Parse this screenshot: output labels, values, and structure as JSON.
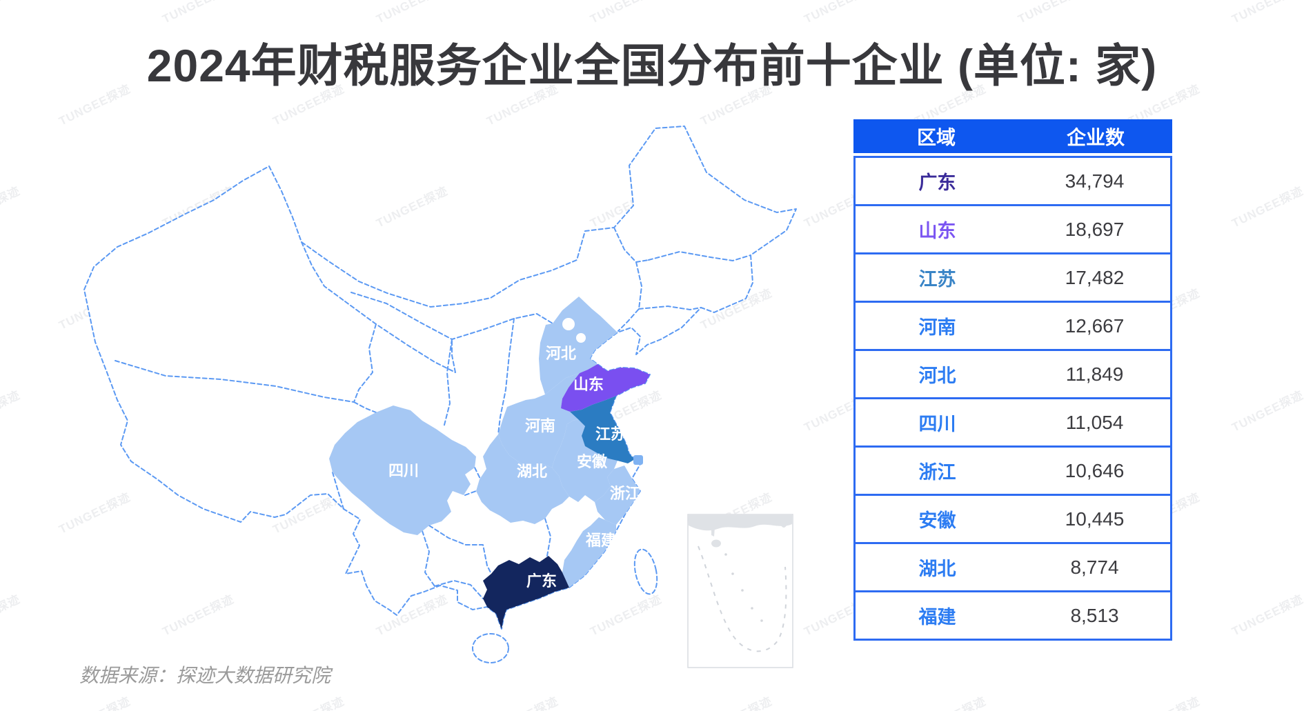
{
  "title": "2024年财税服务企业全国分布前十企业 (单位: 家)",
  "source": "数据来源：探迹大数据研究院",
  "watermark": {
    "text": "TUNGEE探迹"
  },
  "colors": {
    "table_header_bg": "#0e57ef",
    "table_border": "#2d6bf2",
    "value_text": "#3c3c40",
    "province_light_blue": "#a6c8f4",
    "province_shandong": "#7a4ff0",
    "province_jiangsu": "#2b7cc2",
    "province_guangdong": "#13265e",
    "shanghai_dot": "#7fb2f2",
    "map_dash_border": "#5b99f3",
    "inset_gray": "#dfe2e6"
  },
  "table": {
    "headers": [
      "区域",
      "企业数"
    ],
    "rows": [
      {
        "region": "广东",
        "count": "34,794",
        "color": "#3a2b99"
      },
      {
        "region": "山东",
        "count": "18,697",
        "color": "#7b55f2"
      },
      {
        "region": "江苏",
        "count": "17,482",
        "color": "#3984c6"
      },
      {
        "region": "河南",
        "count": "12,667",
        "color": "#2c7cf2"
      },
      {
        "region": "河北",
        "count": "11,849",
        "color": "#2c7cf2"
      },
      {
        "region": "四川",
        "count": "11,054",
        "color": "#2c7cf2"
      },
      {
        "region": "浙江",
        "count": "10,646",
        "color": "#2c7cf2"
      },
      {
        "region": "安徽",
        "count": "10,445",
        "color": "#2c7cf2"
      },
      {
        "region": "湖北",
        "count": "8,774",
        "color": "#2c7cf2"
      },
      {
        "region": "福建",
        "count": "8,513",
        "color": "#2c7cf2"
      }
    ]
  },
  "map": {
    "labels": [
      {
        "name": "河北"
      },
      {
        "name": "山东"
      },
      {
        "name": "河南"
      },
      {
        "name": "江苏"
      },
      {
        "name": "安徽"
      },
      {
        "name": "湖北"
      },
      {
        "name": "四川"
      },
      {
        "name": "浙江"
      },
      {
        "name": "福建"
      },
      {
        "name": "广东"
      }
    ]
  },
  "chart_data": {
    "type": "table",
    "title": "2024年财税服务企业全国分布前十企业 (单位: 家)",
    "columns": [
      "区域",
      "企业数"
    ],
    "categories": [
      "广东",
      "山东",
      "江苏",
      "河南",
      "河北",
      "四川",
      "浙江",
      "安徽",
      "湖北",
      "福建"
    ],
    "values": [
      34794,
      18697,
      17482,
      12667,
      11849,
      11054,
      10646,
      10445,
      8774,
      8513
    ],
    "legend_position": "right-table",
    "notes": "Choropleth map of China: 广东 dark navy (rank 1), 山东 violet (rank 2), 江苏 medium blue (rank 3), ranks 4-10 light blue; other provinces white with dashed blue borders; South China Sea inset box bottom-right."
  }
}
